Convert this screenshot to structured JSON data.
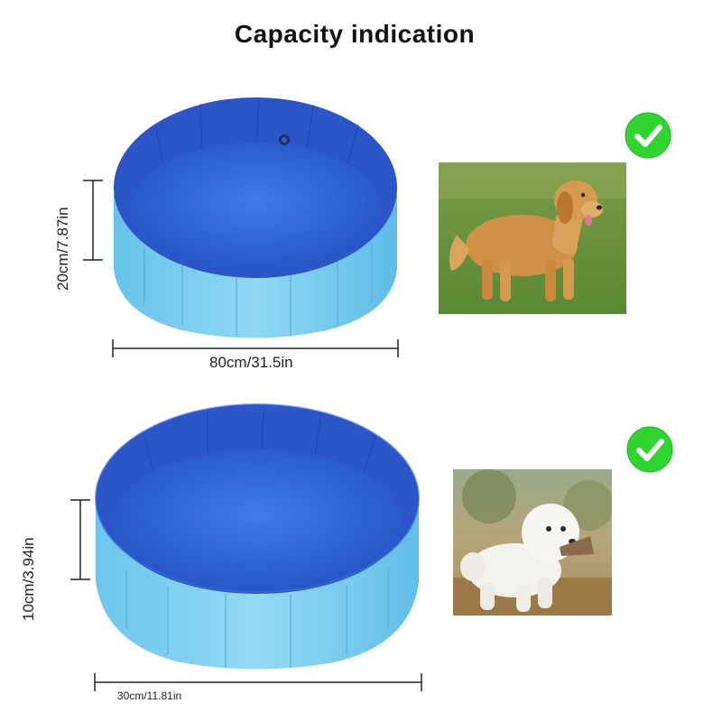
{
  "title": "Capacity indication",
  "products": [
    {
      "height_label": "20cm/7.87in",
      "diameter_label": "80cm/31.5in",
      "suitable": true,
      "photo": "golden-retriever",
      "check_icon": "green-checkmark-icon"
    },
    {
      "height_label": "10cm/3.94in",
      "diameter_label": "30cm/11.81in",
      "suitable": true,
      "photo": "white-bichon",
      "check_icon": "green-checkmark-icon"
    }
  ],
  "colors": {
    "pool_inner": "#2f63d6",
    "pool_outer": "#7fd0ef",
    "check_green": "#2fd42f"
  }
}
